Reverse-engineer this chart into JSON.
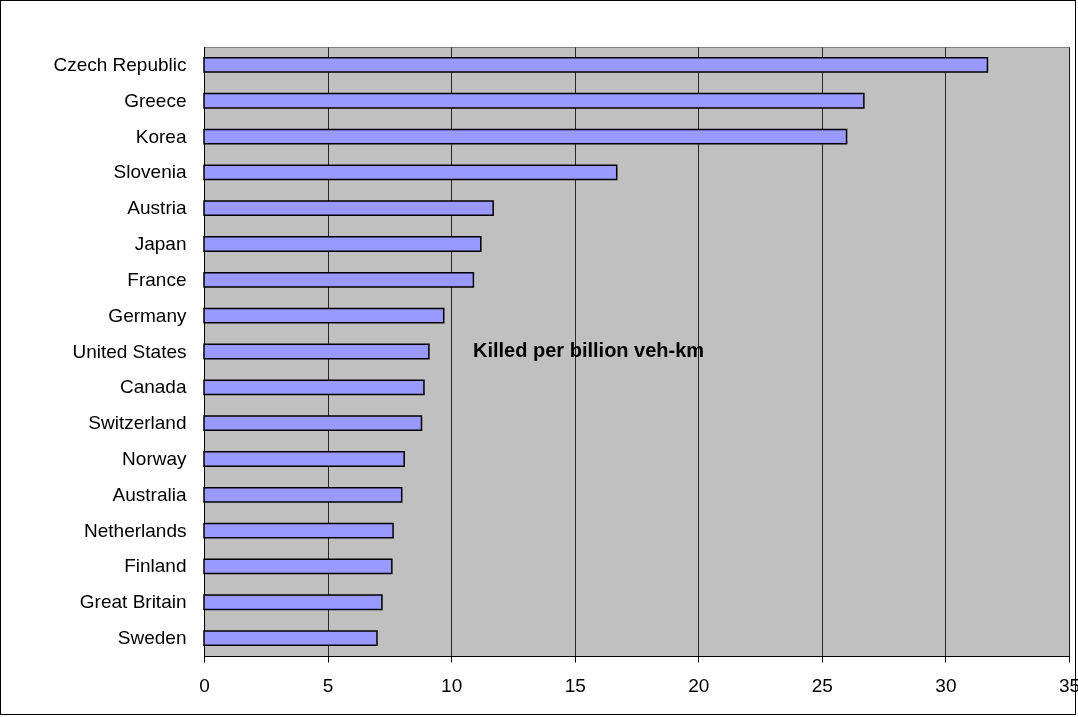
{
  "chart_data": {
    "type": "bar",
    "orientation": "horizontal",
    "categories": [
      "Czech Republic",
      "Greece",
      "Korea",
      "Slovenia",
      "Austria",
      "Japan",
      "France",
      "Germany",
      "United States",
      "Canada",
      "Switzerland",
      "Norway",
      "Australia",
      "Netherlands",
      "Finland",
      "Great Britain",
      "Sweden"
    ],
    "values": [
      31.7,
      26.7,
      26.0,
      16.7,
      11.7,
      11.2,
      10.9,
      9.7,
      9.1,
      8.9,
      8.8,
      8.1,
      8.0,
      7.65,
      7.6,
      7.2,
      7.0
    ],
    "color": "#9999ff",
    "xlim": [
      0,
      35
    ],
    "xticks": [
      0,
      5,
      10,
      15,
      20,
      25,
      30,
      35
    ],
    "grid": "x",
    "annotations": [
      "Killed per billion veh-km"
    ]
  }
}
